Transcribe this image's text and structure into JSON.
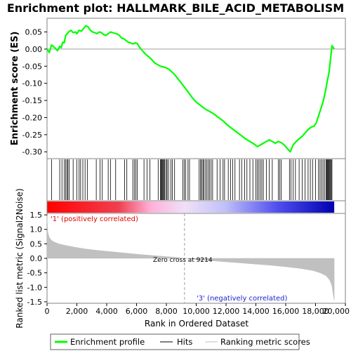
{
  "chart_data": {
    "type": "line",
    "title": "Enrichment plot: HALLMARK_BILE_ACID_METABOLISM",
    "es_panel": {
      "ylabel": "Enrichment score (ES)",
      "ylim": [
        -0.32,
        0.09
      ],
      "yticks": [
        {
          "value": 0.05,
          "label": "0.05"
        },
        {
          "value": 0.0,
          "label": "0.00"
        },
        {
          "value": -0.05,
          "label": "-0.05"
        },
        {
          "value": -0.1,
          "label": "-0.10"
        },
        {
          "value": -0.15,
          "label": "-0.15"
        },
        {
          "value": -0.2,
          "label": "-0.20"
        },
        {
          "value": -0.25,
          "label": "-0.25"
        },
        {
          "value": -0.3,
          "label": "-0.30"
        }
      ],
      "series": [
        {
          "name": "Enrichment profile",
          "color": "#00ff00",
          "x": [
            0,
            150,
            300,
            500,
            700,
            850,
            950,
            1050,
            1150,
            1250,
            1350,
            1450,
            1600,
            1750,
            1900,
            2000,
            2150,
            2300,
            2450,
            2600,
            2750,
            2900,
            3050,
            3200,
            3350,
            3500,
            3650,
            3800,
            3950,
            4100,
            4250,
            4400,
            4550,
            4700,
            4850,
            5000,
            5150,
            5300,
            5450,
            5600,
            5750,
            5900,
            6050,
            6200,
            6400,
            6600,
            6800,
            7000,
            7200,
            7400,
            7600,
            7800,
            8000,
            8200,
            8500,
            8800,
            9100,
            9400,
            9700,
            10000,
            10300,
            10600,
            10900,
            11200,
            11500,
            11800,
            12100,
            12400,
            12700,
            13000,
            13300,
            13600,
            13900,
            14100,
            14300,
            14500,
            14700,
            14900,
            15100,
            15300,
            15500,
            15700,
            15900,
            16100,
            16300,
            16500,
            16700,
            16900,
            17100,
            17300,
            17500,
            17700,
            17900,
            18050,
            18200,
            18350,
            18500,
            18600,
            18700,
            18800,
            18900,
            19000,
            19100,
            19250
          ],
          "y": [
            0.0,
            -0.01,
            0.012,
            0.005,
            -0.005,
            0.008,
            0.004,
            0.02,
            0.018,
            0.04,
            0.045,
            0.05,
            0.055,
            0.048,
            0.05,
            0.045,
            0.055,
            0.052,
            0.06,
            0.068,
            0.065,
            0.055,
            0.05,
            0.048,
            0.045,
            0.05,
            0.048,
            0.042,
            0.04,
            0.045,
            0.05,
            0.048,
            0.046,
            0.044,
            0.04,
            0.032,
            0.03,
            0.025,
            0.02,
            0.018,
            0.015,
            0.018,
            0.016,
            0.005,
            -0.005,
            -0.015,
            -0.022,
            -0.03,
            -0.04,
            -0.045,
            -0.05,
            -0.052,
            -0.055,
            -0.06,
            -0.072,
            -0.088,
            -0.105,
            -0.122,
            -0.14,
            -0.155,
            -0.165,
            -0.175,
            -0.182,
            -0.19,
            -0.2,
            -0.21,
            -0.222,
            -0.232,
            -0.242,
            -0.252,
            -0.262,
            -0.27,
            -0.278,
            -0.285,
            -0.28,
            -0.275,
            -0.27,
            -0.265,
            -0.27,
            -0.275,
            -0.27,
            -0.273,
            -0.28,
            -0.29,
            -0.3,
            -0.28,
            -0.27,
            -0.262,
            -0.255,
            -0.245,
            -0.235,
            -0.228,
            -0.225,
            -0.215,
            -0.195,
            -0.175,
            -0.155,
            -0.135,
            -0.115,
            -0.09,
            -0.07,
            -0.03,
            0.01,
            0.0
          ]
        }
      ]
    },
    "hits": {
      "name": "Hits",
      "positions": [
        300,
        850,
        1000,
        1150,
        1250,
        1330,
        1400,
        1480,
        1750,
        2000,
        2150,
        2250,
        2400,
        2550,
        2700,
        3300,
        3550,
        3700,
        4100,
        4250,
        4600,
        5200,
        5350,
        5750,
        5850,
        5950,
        6050,
        6500,
        6700,
        6900,
        7450,
        7600,
        7650,
        7700,
        7750,
        7800,
        7850,
        7900,
        8000,
        8050,
        8150,
        8300,
        8400,
        8550,
        9100,
        9200,
        9300,
        9450,
        9550,
        10200,
        10300,
        10350,
        10450,
        10500,
        10600,
        10700,
        10800,
        10900,
        11000,
        11100,
        11400,
        11600,
        11800,
        11900,
        12150,
        12300,
        12450,
        12600,
        12900,
        13050,
        13250,
        13400,
        13600,
        13800,
        14000,
        14100,
        14200,
        14300,
        14400,
        14500,
        14700,
        14900,
        15100,
        15500,
        15600,
        15700,
        16250,
        16350,
        16500,
        16650,
        16900,
        17100,
        17300,
        17500,
        17650,
        17800,
        18000,
        18200,
        18300,
        18400,
        18500,
        18600,
        18700,
        18750,
        18800,
        18850,
        18900,
        18950,
        19000,
        19050,
        19100
      ]
    },
    "metric_panel": {
      "ylabel": "Ranked list metric (Signal2Noise)",
      "ylim": [
        -1.55,
        1.55
      ],
      "yticks": [
        {
          "value": 1.5,
          "label": "1.5"
        },
        {
          "value": 1.0,
          "label": "1.0"
        },
        {
          "value": 0.5,
          "label": "0.5"
        },
        {
          "value": 0.0,
          "label": "0.0"
        },
        {
          "value": -0.5,
          "label": "-0.5"
        },
        {
          "value": -1.0,
          "label": "-1.0"
        },
        {
          "value": -1.5,
          "label": "-1.5"
        }
      ],
      "series": [
        {
          "name": "Ranking metric scores",
          "color": "#c0c0c0",
          "x": [
            0,
            50,
            150,
            300,
            500,
            800,
            1200,
            1800,
            2500,
            3500,
            4500,
            5500,
            6500,
            7500,
            8500,
            9214,
            10000,
            11000,
            12000,
            13000,
            14000,
            15000,
            16000,
            17000,
            17800,
            18300,
            18700,
            18950,
            19100,
            19200,
            19250
          ],
          "y": [
            1.45,
            0.9,
            0.72,
            0.62,
            0.56,
            0.5,
            0.45,
            0.39,
            0.33,
            0.27,
            0.22,
            0.17,
            0.12,
            0.08,
            0.04,
            0.0,
            -0.04,
            -0.08,
            -0.12,
            -0.16,
            -0.2,
            -0.24,
            -0.29,
            -0.35,
            -0.42,
            -0.5,
            -0.6,
            -0.75,
            -0.95,
            -1.3,
            -1.45
          ]
        }
      ],
      "zero_cross": 9214,
      "zero_cross_label": "Zero cross at 9214",
      "pos_label": "'1' (positively correlated)",
      "neg_label": "'3' (negatively correlated)"
    },
    "x_axis": {
      "label": "Rank in Ordered Dataset",
      "xlim": [
        0,
        20000
      ],
      "ticks": [
        {
          "value": 0,
          "label": "0"
        },
        {
          "value": 2000,
          "label": "2,000"
        },
        {
          "value": 4000,
          "label": "4,000"
        },
        {
          "value": 6000,
          "label": "6,000"
        },
        {
          "value": 8000,
          "label": "8,000"
        },
        {
          "value": 10000,
          "label": "10,000"
        },
        {
          "value": 12000,
          "label": "12,000"
        },
        {
          "value": 14000,
          "label": "14,000"
        },
        {
          "value": 16000,
          "label": "16,000"
        },
        {
          "value": 18000,
          "label": "18,000"
        },
        {
          "value": 20000,
          "label": "20,000"
        }
      ],
      "dataset_size": 19250
    },
    "legend": {
      "placement": "bottom",
      "entries": [
        {
          "label": "Enrichment profile",
          "color": "#00ff00"
        },
        {
          "label": "Hits",
          "color": "#000000"
        },
        {
          "label": "Ranking metric scores",
          "color": "#c0c0c0"
        }
      ]
    },
    "grid": false
  }
}
